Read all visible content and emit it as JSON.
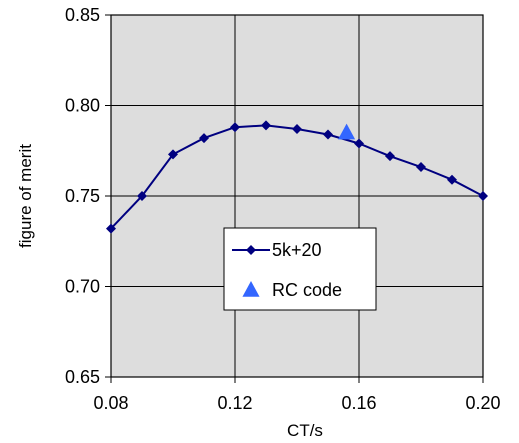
{
  "chart_data": {
    "type": "line",
    "title": "",
    "xlabel": "CT/s",
    "ylabel": "figure of merit",
    "xlim": [
      0.08,
      0.2
    ],
    "ylim": [
      0.65,
      0.85
    ],
    "grid": true,
    "legend_position": "center",
    "x_ticks": [
      "0.08",
      "0.12",
      "0.16",
      "0.20"
    ],
    "y_ticks": [
      "0.65",
      "0.70",
      "0.75",
      "0.80",
      "0.85"
    ],
    "series": [
      {
        "name": "5k+20",
        "marker": "diamond",
        "color": "#000080",
        "x": [
          0.08,
          0.09,
          0.1,
          0.11,
          0.12,
          0.13,
          0.14,
          0.15,
          0.16,
          0.17,
          0.18,
          0.19,
          0.2
        ],
        "y": [
          0.732,
          0.75,
          0.773,
          0.782,
          0.788,
          0.789,
          0.787,
          0.784,
          0.779,
          0.772,
          0.766,
          0.759,
          0.75
        ]
      },
      {
        "name": "RC code",
        "marker": "triangle",
        "color": "#3366ff",
        "x": [
          0.156
        ],
        "y": [
          0.785
        ]
      }
    ],
    "plot_background": "#dddddd",
    "grid_color": "#000000"
  }
}
